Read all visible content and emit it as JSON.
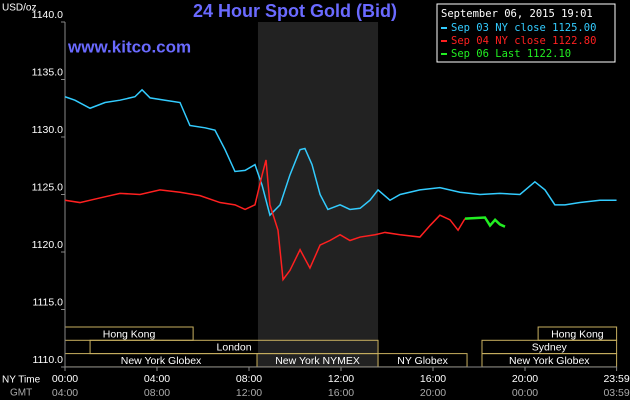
{
  "chart_data": {
    "type": "line",
    "title": "24 Hour Spot Gold (Bid)",
    "subtitle": "www.kitco.com",
    "y_label": "USD/oz",
    "date_label": "September 06, 2015 19:01",
    "x_row_labels": [
      "NY Time",
      "GMT"
    ],
    "xlim": [
      0,
      24
    ],
    "ylim": [
      1110,
      1140
    ],
    "xticks": [
      {
        "value": 0,
        "label": "00:00"
      },
      {
        "value": 4,
        "label": "04:00"
      },
      {
        "value": 8,
        "label": "08:00"
      },
      {
        "value": 12,
        "label": "12:00"
      },
      {
        "value": 16,
        "label": "16:00"
      },
      {
        "value": 20,
        "label": "20:00"
      },
      {
        "value": 23.983,
        "label": "23:59"
      }
    ],
    "gmt_labels": [
      "04:00",
      "08:00",
      "12:00",
      "16:00",
      "20:00",
      "00:00",
      "03:59"
    ],
    "yticks": [
      {
        "value": 1110,
        "label": "1110.0"
      },
      {
        "value": 1115,
        "label": "1115.0"
      },
      {
        "value": 1120,
        "label": "1120.0"
      },
      {
        "value": 1125,
        "label": "1125.0"
      },
      {
        "value": 1130,
        "label": "1130.0"
      },
      {
        "value": 1135,
        "label": "1135.0"
      },
      {
        "value": 1140,
        "label": "1140.0"
      }
    ],
    "shaded": [
      8.39,
      13.61
    ],
    "sessions": [
      [
        {
          "label": "Hong Kong",
          "start": 0,
          "end": 5.57
        },
        {
          "label": "Hong Kong",
          "start": 20.57,
          "end": 23.983
        }
      ],
      [
        {
          "label": "London",
          "start": 1.09,
          "end": 13.61
        },
        {
          "label": "Sydney",
          "start": 18.13,
          "end": 23.983
        }
      ],
      [
        {
          "label": "New York Globex",
          "start": 0,
          "end": 8.35
        },
        {
          "label": "New York NYMEX",
          "start": 8.35,
          "end": 13.61
        },
        {
          "label": "NY Globex",
          "start": 13.61,
          "end": 17.48
        },
        {
          "label": "New York Globex",
          "start": 18.13,
          "end": 23.983
        }
      ]
    ],
    "series": [
      {
        "name": "Sep 03 NY close 1125.00",
        "color": "#33ccff",
        "x": [
          0,
          0.43,
          1.09,
          1.74,
          2.39,
          3.04,
          3.35,
          3.7,
          4.35,
          5.0,
          5.43,
          6.09,
          6.52,
          6.96,
          7.39,
          7.83,
          8.26,
          8.57,
          8.91,
          9.35,
          9.78,
          10.22,
          10.43,
          10.74,
          11.09,
          11.43,
          11.96,
          12.39,
          12.83,
          13.26,
          13.61,
          14.13,
          14.57,
          15.43,
          16.3,
          17.17,
          18.04,
          18.91,
          19.78,
          20.43,
          20.87,
          21.3,
          21.74,
          22.39,
          23.26,
          23.98
        ],
        "values": [
          1133.5,
          1133.2,
          1132.5,
          1133.0,
          1133.2,
          1133.5,
          1134.1,
          1133.4,
          1133.2,
          1133.0,
          1131.0,
          1130.8,
          1130.6,
          1128.9,
          1127.0,
          1127.1,
          1127.6,
          1125.8,
          1123.2,
          1124.1,
          1126.7,
          1128.9,
          1129.0,
          1127.6,
          1125.0,
          1123.7,
          1124.1,
          1123.7,
          1123.8,
          1124.5,
          1125.4,
          1124.5,
          1125.0,
          1125.4,
          1125.6,
          1125.2,
          1125.0,
          1125.1,
          1125.0,
          1126.1,
          1125.4,
          1124.1,
          1124.1,
          1124.3,
          1124.5,
          1124.5
        ]
      },
      {
        "name": "Sep 04 NY close 1122.80",
        "color": "#ff2020",
        "x": [
          0,
          0.65,
          1.52,
          2.39,
          3.26,
          4.13,
          5.0,
          5.87,
          6.74,
          7.39,
          7.83,
          8.26,
          8.57,
          8.74,
          8.91,
          9.26,
          9.48,
          9.78,
          10.22,
          10.65,
          11.09,
          11.52,
          11.96,
          12.39,
          12.83,
          13.48,
          13.91,
          14.57,
          15.43,
          15.87,
          16.3,
          16.74,
          17.09,
          17.39
        ],
        "values": [
          1124.5,
          1124.3,
          1124.7,
          1125.1,
          1125.0,
          1125.4,
          1125.2,
          1124.9,
          1124.3,
          1124.1,
          1123.7,
          1124.1,
          1126.7,
          1128.0,
          1124.1,
          1121.9,
          1117.6,
          1118.4,
          1120.2,
          1118.6,
          1120.6,
          1121.0,
          1121.5,
          1121.0,
          1121.3,
          1121.5,
          1121.7,
          1121.5,
          1121.3,
          1122.3,
          1123.2,
          1122.8,
          1121.9,
          1122.9
        ]
      },
      {
        "name": "Sep 06 Last 1122.10",
        "color": "#22ee22",
        "x": [
          17.39,
          18.26,
          18.48,
          18.7,
          18.91,
          19.13
        ],
        "values": [
          1122.9,
          1123.0,
          1122.3,
          1122.8,
          1122.4,
          1122.2
        ]
      }
    ]
  }
}
